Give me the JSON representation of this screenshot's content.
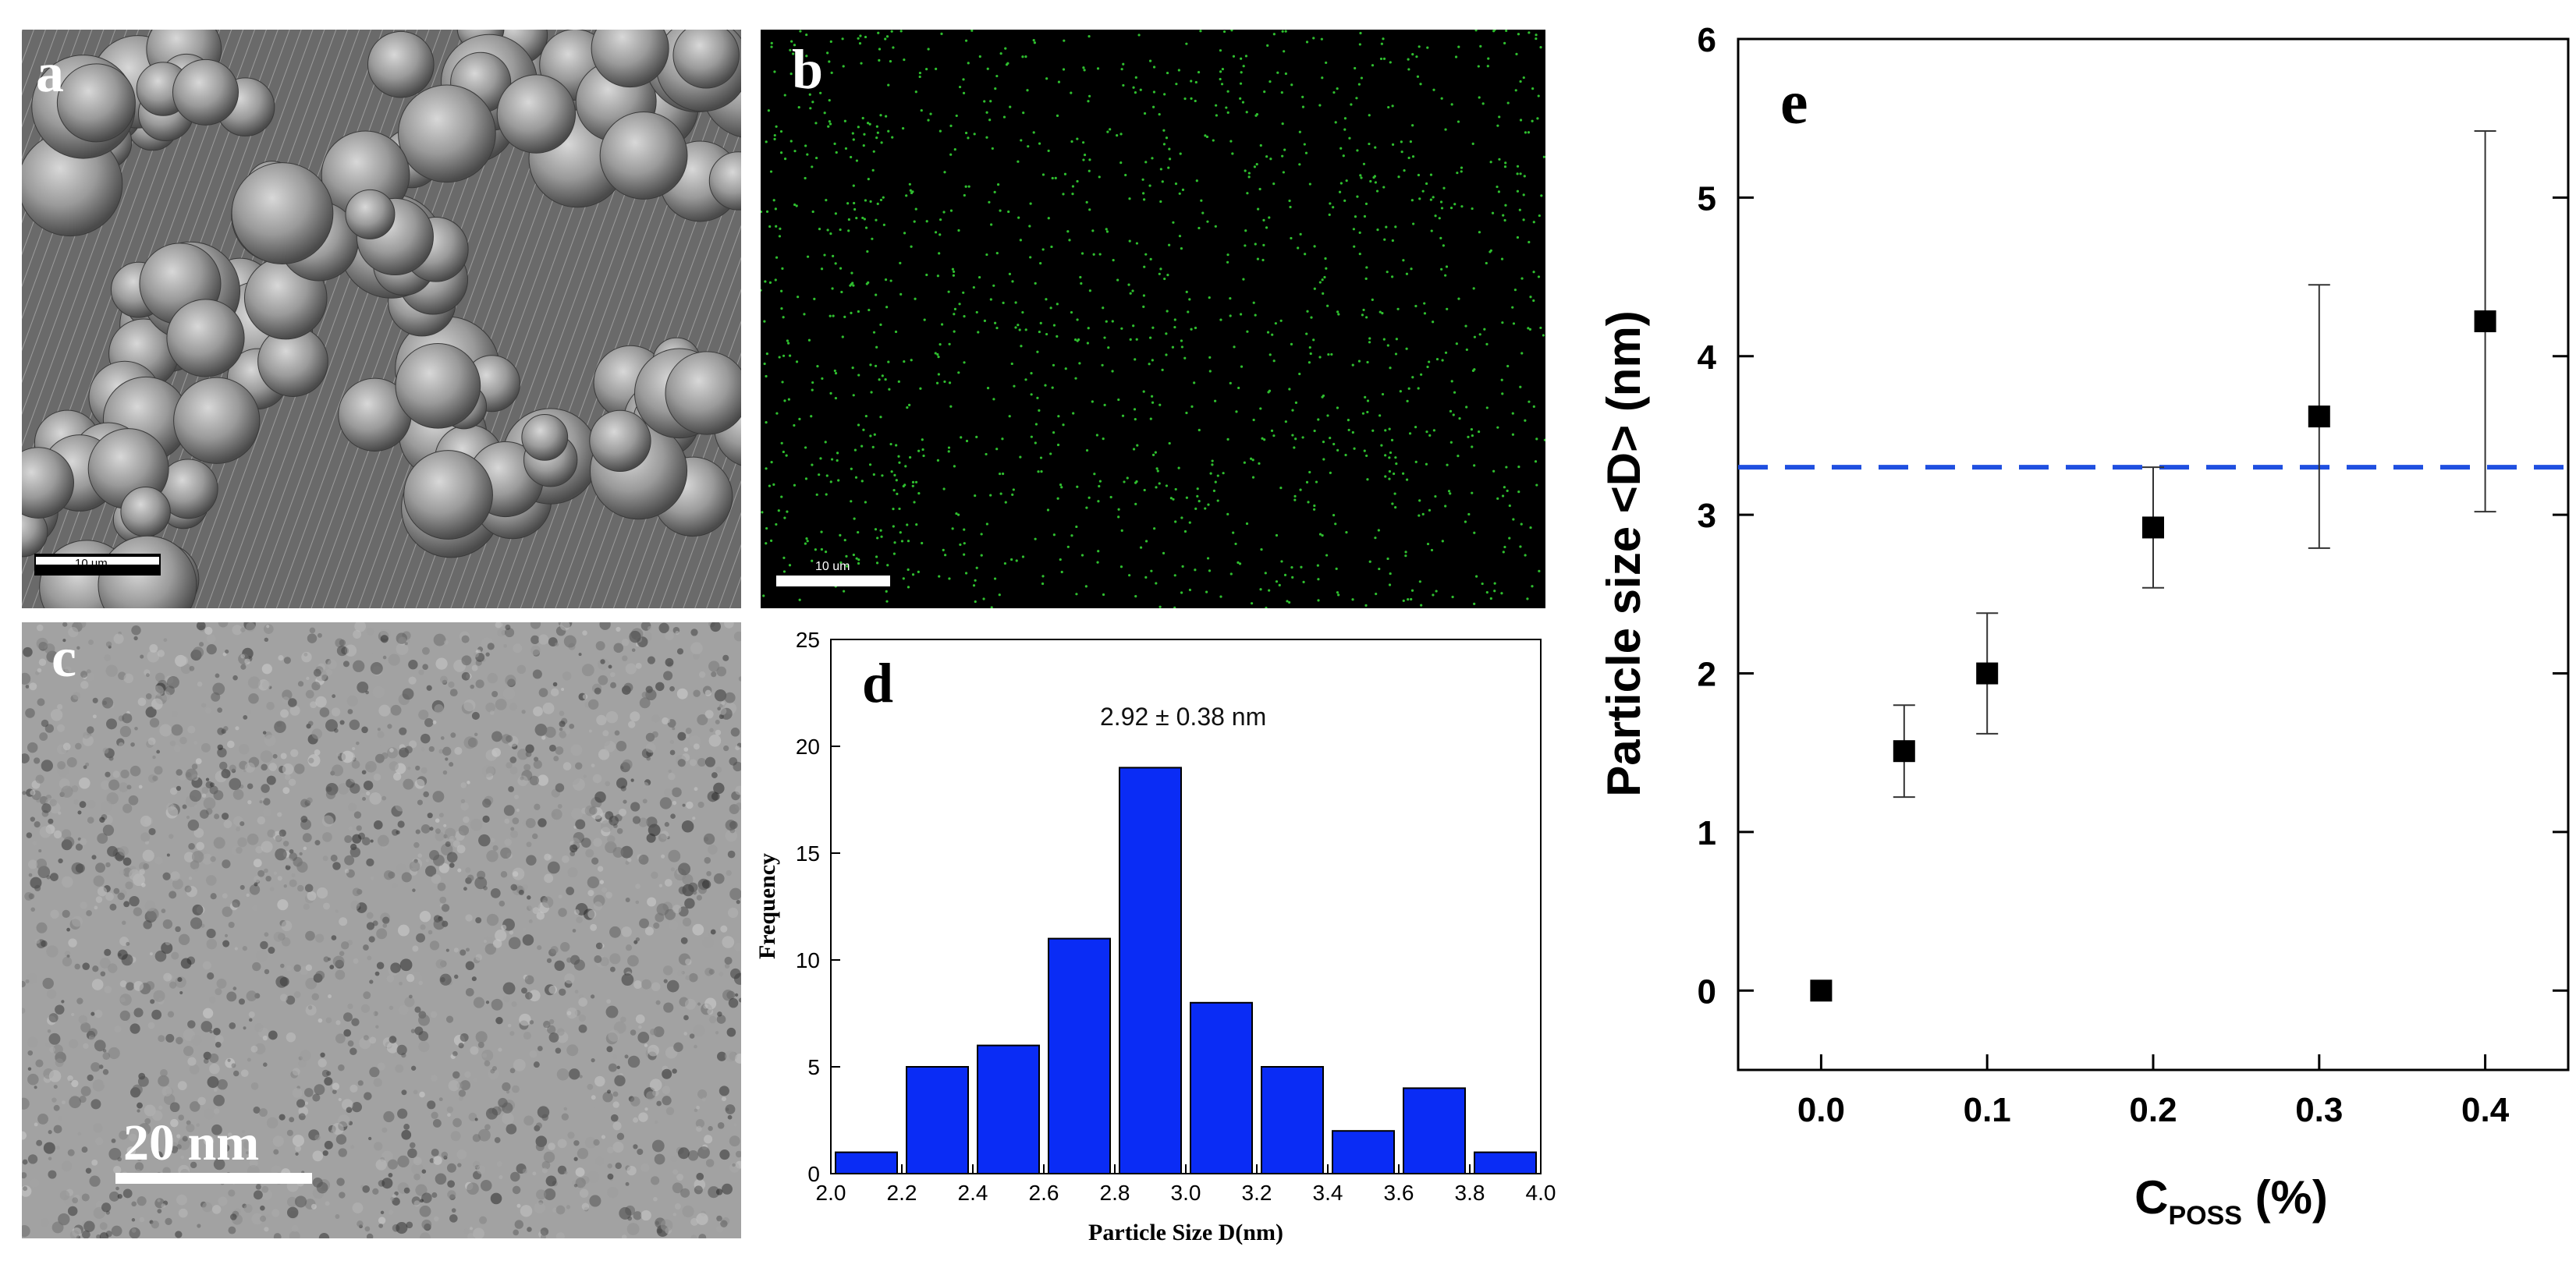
{
  "panels": {
    "a": {
      "letter": "a",
      "scalebar": "10 um"
    },
    "b": {
      "letter": "b",
      "scalebar": "10 um"
    },
    "c": {
      "letter": "c",
      "scalebar": "20 nm"
    },
    "d": {
      "letter": "d"
    },
    "e": {
      "letter": "e"
    }
  },
  "colors": {
    "bar_fill": "#0a2cf5",
    "dashed_line": "#1f4fe0",
    "eds_dot": "#2fbf2f",
    "marker": "#000000"
  },
  "chart_data": [
    {
      "panel": "d",
      "type": "bar",
      "annotation": "2.92 ± 0.38 nm",
      "xlabel": "Particle Size D(nm)",
      "ylabel": "Frequency",
      "xlim": [
        2.0,
        4.0
      ],
      "ylim": [
        0,
        25
      ],
      "xticks": [
        "2.0",
        "2.2",
        "2.4",
        "2.6",
        "2.8",
        "3.0",
        "3.2",
        "3.4",
        "3.6",
        "3.8",
        "4.0"
      ],
      "yticks": [
        "0",
        "5",
        "10",
        "15",
        "20",
        "25"
      ],
      "bin_width": 0.2,
      "bin_centers": [
        2.1,
        2.3,
        2.5,
        2.7,
        2.9,
        3.1,
        3.3,
        3.5,
        3.7,
        3.9
      ],
      "values": [
        1,
        5,
        6,
        11,
        19,
        8,
        5,
        2,
        4,
        1
      ]
    },
    {
      "panel": "e",
      "type": "scatter",
      "xlabel_main": "C",
      "xlabel_sub": "POSS",
      "xlabel_tail": " (%)",
      "ylabel": "Particle size <D> (nm)",
      "xlim": [
        -0.05,
        0.45
      ],
      "ylim": [
        -0.5,
        6
      ],
      "xticks": [
        "0.0",
        "0.1",
        "0.2",
        "0.3",
        "0.4"
      ],
      "yticks": [
        "0",
        "1",
        "2",
        "3",
        "4",
        "5",
        "6"
      ],
      "x": [
        0.0,
        0.05,
        0.1,
        0.2,
        0.3,
        0.4
      ],
      "y": [
        0.0,
        1.51,
        2.0,
        2.92,
        3.62,
        4.22
      ],
      "err": [
        0.0,
        0.29,
        0.38,
        0.38,
        0.83,
        1.2
      ],
      "reference_line": 3.3
    }
  ]
}
